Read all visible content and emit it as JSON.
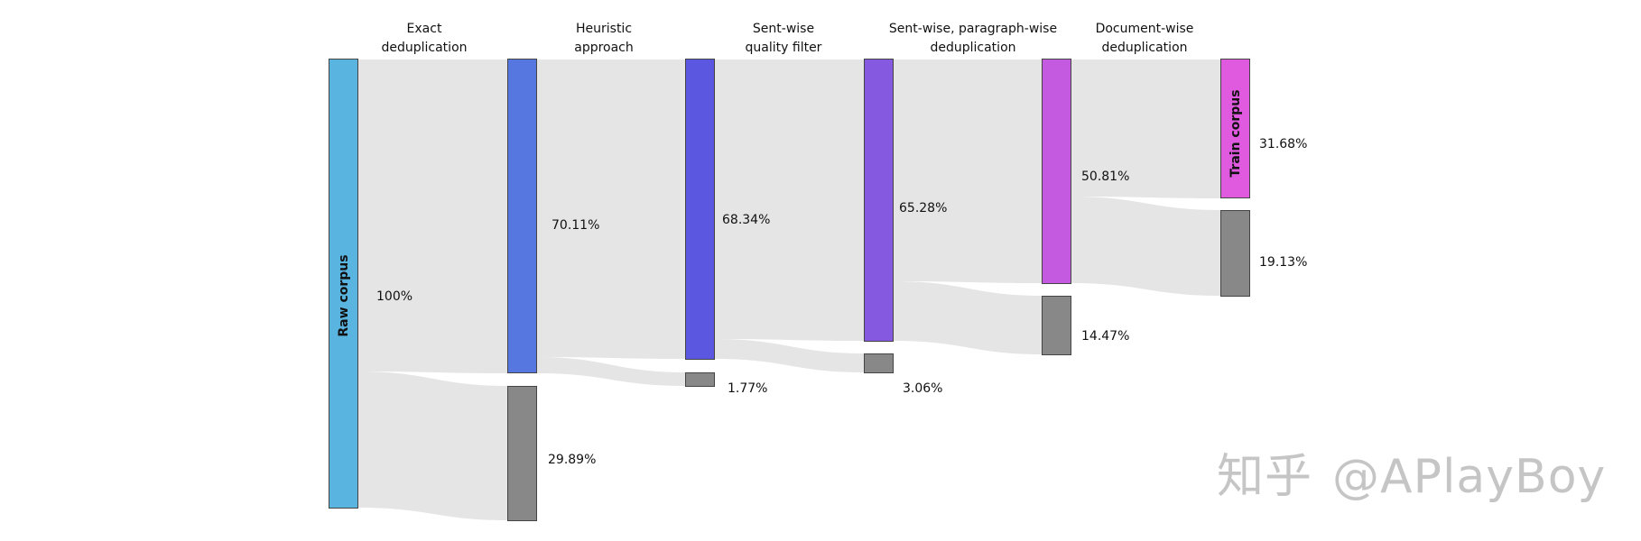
{
  "stages": [
    {
      "line1": "Exact",
      "line2": "deduplication"
    },
    {
      "line1": "Heuristic",
      "line2": "approach"
    },
    {
      "line1": "Sent-wise",
      "line2": "quality filter"
    },
    {
      "line1": "Sent-wise, paragraph-wise",
      "line2": "deduplication"
    },
    {
      "line1": "Document-wise",
      "line2": "deduplication"
    }
  ],
  "nodes": {
    "raw": {
      "label": "Raw corpus",
      "pct": "100%",
      "color": "#5ab4e0"
    },
    "kept": [
      {
        "pct": "70.11%",
        "color": "#5777e0"
      },
      {
        "pct": "68.34%",
        "color": "#5c57e0"
      },
      {
        "pct": "65.28%",
        "color": "#855ae0"
      },
      {
        "pct": "50.81%",
        "color": "#c45ae0"
      }
    ],
    "train": {
      "label": "Train corpus",
      "pct": "31.68%",
      "color": "#e05ae0"
    },
    "removed": [
      {
        "pct": "29.89%"
      },
      {
        "pct": "1.77%"
      },
      {
        "pct": "3.06%"
      },
      {
        "pct": "14.47%"
      },
      {
        "pct": "19.13%"
      }
    ],
    "removed_color": "#888888",
    "link_color": "#e5e5e5"
  },
  "watermark": {
    "left": "知乎",
    "right": "@APlayBoy"
  }
}
